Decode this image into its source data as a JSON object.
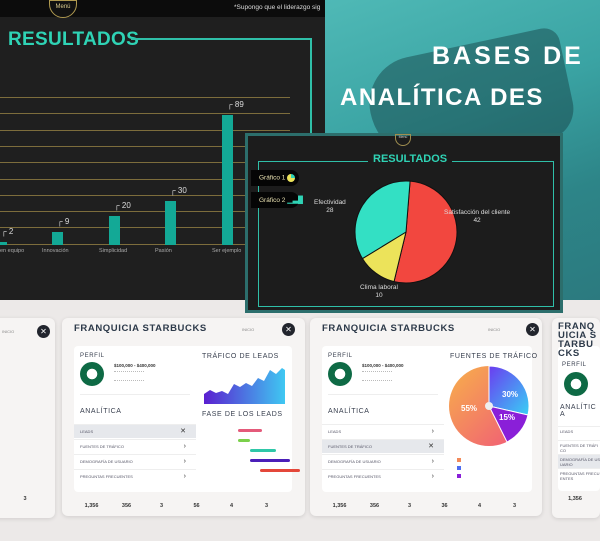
{
  "top_panel": {
    "menu_label": "Menú",
    "quote": "*Supongo que el liderazgo sig",
    "title": "RESULTADOS"
  },
  "bar_chart": {
    "type": "bar",
    "categories": [
      "en equipo",
      "Innovación",
      "Simplicidad",
      "Pasión",
      "Ser ejemplo"
    ],
    "values": [
      2,
      9,
      20,
      30,
      89
    ],
    "ylim": [
      0,
      100
    ]
  },
  "hero": {
    "line1": "BASES DE",
    "line2": "ANALÍTICA DES"
  },
  "pie_panel": {
    "menu_label": "Menú",
    "title": "RESULTADOS",
    "buttons": [
      {
        "label": "Gráfico 1",
        "icon": "pie-chart-icon"
      },
      {
        "label": "Gráfico 2",
        "icon": "bar-chart-icon"
      }
    ],
    "chart_data": {
      "type": "pie",
      "slices": [
        {
          "label": "Satisfacción del cliente",
          "value": 42,
          "color": "#f2473f"
        },
        {
          "label": "Clima laboral",
          "value": 10,
          "color": "#ece35a"
        },
        {
          "label": "Efectividad",
          "value": 28,
          "color": "#33e0c4"
        }
      ]
    }
  },
  "left_card": {
    "inicio": "INICIO",
    "stat": "3"
  },
  "cards": [
    {
      "title": "FRANQUICIA STARBUCKS",
      "inicio": "INICIO",
      "profile": "PERFIL",
      "range": "$100,000 - $400,000",
      "analytics": "ANALÍTICA",
      "menu": [
        {
          "label": "LEADS",
          "icon": "close-icon"
        },
        {
          "label": "FUENTES DE TRÁFICO",
          "icon": "chevron-right-icon"
        },
        {
          "label": "DEMOGRAFÍA DE USUARIO",
          "icon": "chevron-right-icon"
        },
        {
          "label": "PREGUNTAS FRECUENTES",
          "icon": "chevron-right-icon"
        }
      ],
      "selected": 0,
      "right": "leads",
      "traffic_title": "TRÁFICO DE LEADS",
      "phase_title": "FASE DE LOS LEADS",
      "stats": [
        "1,356",
        "356",
        "3",
        "56",
        "4",
        "3"
      ]
    },
    {
      "title": "FRANQUICIA STARBUCKS",
      "inicio": "INICIO",
      "profile": "PERFIL",
      "range": "$100,000 - $400,000",
      "analytics": "ANALÍTICA",
      "menu": [
        {
          "label": "LEADS",
          "icon": "chevron-right-icon"
        },
        {
          "label": "FUENTES DE TRÁFICO",
          "icon": "close-icon"
        },
        {
          "label": "DEMOGRAFÍA DE USUARIO",
          "icon": "chevron-right-icon"
        },
        {
          "label": "PREGUNTAS FRECUENTES",
          "icon": "chevron-right-icon"
        }
      ],
      "selected": 1,
      "right": "sources",
      "sources_title": "FUENTES DE TRÁFICO",
      "sources": {
        "type": "pie",
        "slices": [
          {
            "label": "55%",
            "value": 55
          },
          {
            "label": "30%",
            "value": 30
          },
          {
            "label": "15%",
            "value": 15
          }
        ]
      },
      "stats": [
        "1,356",
        "356",
        "3",
        "36",
        "4",
        "3"
      ]
    }
  ],
  "right_card": {
    "title": "FRANQUICIA STARBUCKS",
    "profile": "PERFIL",
    "analytics": "ANALÍTICA",
    "menu": [
      "LEADS",
      "FUENTES DE TRÁFICO",
      "DEMOGRAFÍA DE USUARIO",
      "PREGUNTAS FRECUENTES"
    ],
    "stat": "1,356"
  }
}
